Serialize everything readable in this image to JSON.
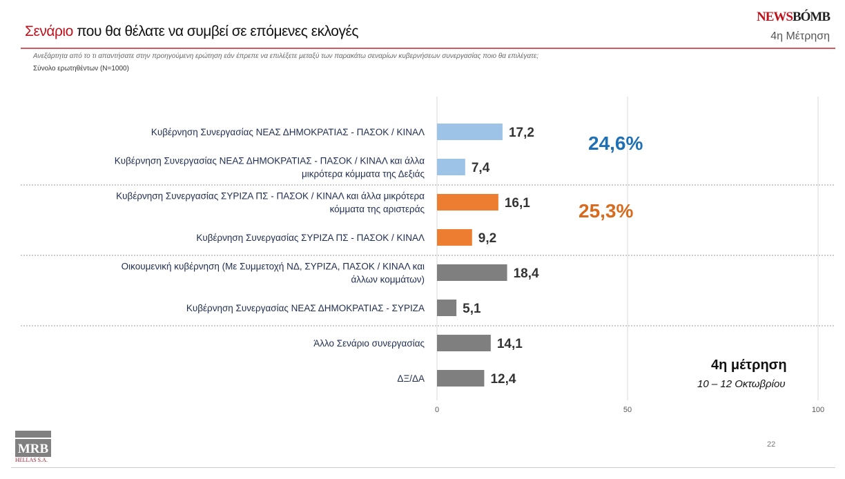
{
  "header": {
    "title_highlight": "Σενάριο",
    "title_rest": " που θα θέλατε να συμβεί σε επόμενες εκλογές",
    "brand_a": "NEWS",
    "brand_b": "BÓMB",
    "wave": "4η Μέτρηση",
    "question": "Ανεξάρτητα από το τι απαντήσατε στην προηγούμενη ερώτηση εάν έπρεπε να επιλέξετε μεταξύ των παρακάτω σεναρίων κυβερνήσεων συνεργασίας ποιο θα επιλέγατε;",
    "base": "Σύνολο ερωτηθέντων (N=1000)"
  },
  "chart_data": {
    "type": "bar",
    "orientation": "horizontal",
    "xlim": [
      0,
      100
    ],
    "xticks": [
      "0",
      "50",
      "100"
    ],
    "grid": true,
    "categories": [
      [
        "Κυβέρνηση Συνεργασίας ΝΕΑΣ ΔΗΜΟΚΡΑΤΙΑΣ - ΠΑΣΟΚ / ΚΙΝΑΛ"
      ],
      [
        "Κυβέρνηση Συνεργασίας ΝΕΑΣ ΔΗΜΟΚΡΑΤΙΑΣ - ΠΑΣΟΚ / ΚΙΝΑΛ και άλλα",
        "μικρότερα κόμματα της Δεξιάς"
      ],
      [
        "Κυβέρνηση Συνεργασίας ΣΥΡΙΖΑ ΠΣ - ΠΑΣΟΚ / ΚΙΝΑΛ και άλλα μικρότερα",
        "κόμματα της αριστεράς"
      ],
      [
        "Κυβέρνηση Συνεργασίας ΣΥΡΙΖΑ ΠΣ - ΠΑΣΟΚ / ΚΙΝΑΛ"
      ],
      [
        "Οικουμενική κυβέρνηση (Με Συμμετοχή ΝΔ, ΣΥΡΙΖΑ, ΠΑΣΟΚ / ΚΙΝΑΛ και",
        "άλλων κομμάτων)"
      ],
      [
        "Κυβέρνηση Συνεργασίας ΝΕΑΣ ΔΗΜΟΚΡΑΤΙΑΣ - ΣΥΡΙΖΑ"
      ],
      [
        "Άλλο Σενάριο συνεργασίας"
      ],
      [
        "ΔΞ/ΔΑ"
      ]
    ],
    "values": [
      17.2,
      7.4,
      16.1,
      9.2,
      18.4,
      5.1,
      14.1,
      12.4
    ],
    "value_labels": [
      "17,2",
      "7,4",
      "16,1",
      "9,2",
      "18,4",
      "5,1",
      "14,1",
      "12,4"
    ],
    "colors": [
      "#9dc3e6",
      "#9dc3e6",
      "#ed7d31",
      "#ed7d31",
      "#7f7f7f",
      "#7f7f7f",
      "#7f7f7f",
      "#7f7f7f"
    ],
    "annotations": [
      "24,6%",
      "25,3%"
    ]
  },
  "footer": {
    "wave_label": "4η μέτρηση",
    "dates": "10 – 12 Οκτωβρίου",
    "page": "22",
    "logo": "MRB",
    "logo_sub": "HELLAS S.A."
  }
}
